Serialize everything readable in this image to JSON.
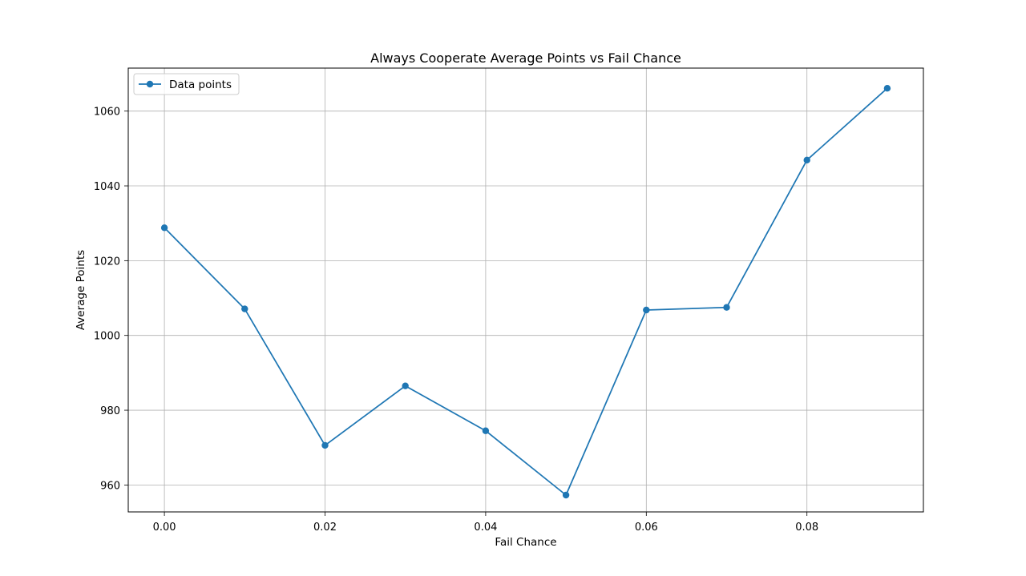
{
  "chart_data": {
    "type": "line",
    "title": "Always Cooperate Average Points vs Fail Chance",
    "xlabel": "Fail Chance",
    "ylabel": "Average Points",
    "x": [
      0.0,
      0.01,
      0.02,
      0.03,
      0.04,
      0.05,
      0.06,
      0.07,
      0.08,
      0.09
    ],
    "series": [
      {
        "name": "Data points",
        "values": [
          1028.8,
          1007.1,
          970.6,
          986.5,
          974.5,
          957.3,
          1006.8,
          1007.5,
          1046.9,
          1066.1
        ],
        "color": "#1f77b4",
        "marker": "circle"
      }
    ],
    "xlim": [
      -0.0045,
      0.0945
    ],
    "ylim": [
      952.8,
      1071.5
    ],
    "xticks": [
      0.0,
      0.02,
      0.04,
      0.06,
      0.08
    ],
    "xtick_labels": [
      "0.00",
      "0.02",
      "0.04",
      "0.06",
      "0.08"
    ],
    "yticks": [
      960,
      980,
      1000,
      1020,
      1040,
      1060
    ],
    "ytick_labels": [
      "960",
      "980",
      "1000",
      "1020",
      "1040",
      "1060"
    ],
    "grid": true,
    "legend_position": "top-left"
  }
}
